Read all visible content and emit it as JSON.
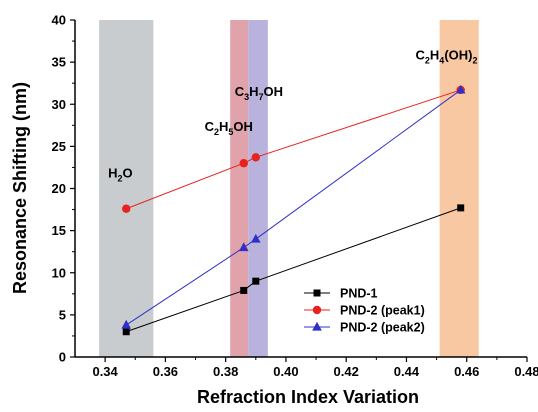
{
  "chart_data": {
    "type": "line",
    "xlabel": "Refraction Index Variation",
    "ylabel": "Resonance Shifting (nm)",
    "xlim": [
      0.33,
      0.48
    ],
    "ylim": [
      0,
      40
    ],
    "xticks": [
      "0.34",
      "0.36",
      "0.38",
      "0.40",
      "0.42",
      "0.44",
      "0.46",
      "0.48"
    ],
    "yticks": [
      "0",
      "5",
      "10",
      "15",
      "20",
      "25",
      "30",
      "35",
      "40"
    ],
    "grid": false,
    "legend_position": "bottom-right",
    "bands": [
      {
        "x0": 0.338,
        "x1": 0.356,
        "color": "#c9ccce"
      },
      {
        "x0": 0.3815,
        "x1": 0.3875,
        "color": "#e0a3ab"
      },
      {
        "x0": 0.3875,
        "x1": 0.394,
        "color": "#b8b2dc"
      },
      {
        "x0": 0.451,
        "x1": 0.464,
        "color": "#f8c8a3"
      }
    ],
    "annotations": [
      {
        "parts": [
          {
            "t": "H"
          },
          {
            "t": "2",
            "sub": true
          },
          {
            "t": "O"
          }
        ],
        "x": 0.341,
        "y": 21.3
      },
      {
        "parts": [
          {
            "t": "C"
          },
          {
            "t": "2",
            "sub": true
          },
          {
            "t": "H"
          },
          {
            "t": "5",
            "sub": true
          },
          {
            "t": "OH"
          }
        ],
        "x": 0.373,
        "y": 26.8
      },
      {
        "parts": [
          {
            "t": "C"
          },
          {
            "t": "3",
            "sub": true
          },
          {
            "t": "H"
          },
          {
            "t": "7",
            "sub": true
          },
          {
            "t": "OH"
          }
        ],
        "x": 0.383,
        "y": 31.0
      },
      {
        "parts": [
          {
            "t": "C"
          },
          {
            "t": "2",
            "sub": true
          },
          {
            "t": "H"
          },
          {
            "t": "4",
            "sub": true
          },
          {
            "t": "(OH)"
          },
          {
            "t": "2",
            "sub": true
          }
        ],
        "x": 0.443,
        "y": 35.3
      }
    ],
    "series": [
      {
        "name": "PND-1",
        "color": "#000000",
        "marker": "square",
        "x": [
          0.347,
          0.386,
          0.39,
          0.458
        ],
        "y": [
          3.0,
          7.9,
          9.0,
          17.7
        ]
      },
      {
        "name": "PND-2 (peak1)",
        "color": "#e8221f",
        "marker": "circle",
        "x": [
          0.347,
          0.386,
          0.39,
          0.458
        ],
        "y": [
          17.6,
          23.0,
          23.7,
          31.7
        ]
      },
      {
        "name": "PND-2 (peak2)",
        "color": "#3030c8",
        "marker": "triangle",
        "x": [
          0.347,
          0.386,
          0.39,
          0.458
        ],
        "y": [
          3.8,
          13.0,
          14.0,
          31.7
        ]
      }
    ]
  }
}
